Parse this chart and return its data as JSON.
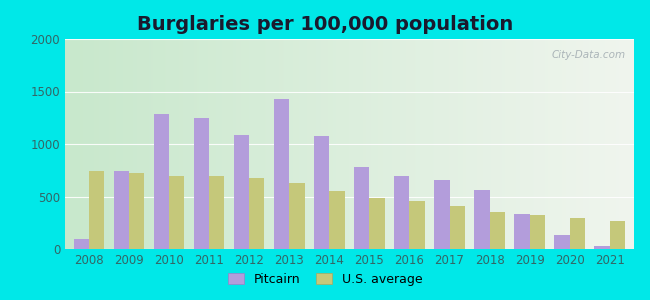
{
  "title": "Burglaries per 100,000 population",
  "years": [
    2008,
    2009,
    2010,
    2011,
    2012,
    2013,
    2014,
    2015,
    2016,
    2017,
    2018,
    2019,
    2020,
    2021
  ],
  "pitcairn": [
    100,
    740,
    1290,
    1250,
    1090,
    1430,
    1080,
    780,
    700,
    660,
    560,
    330,
    130,
    30
  ],
  "us_average": [
    740,
    720,
    700,
    700,
    680,
    630,
    550,
    490,
    460,
    410,
    350,
    320,
    300,
    270
  ],
  "pitcairn_color": "#b39ddb",
  "us_avg_color": "#c5c87a",
  "background_outer": "#00e8e8",
  "ylim": [
    0,
    2000
  ],
  "yticks": [
    0,
    500,
    1000,
    1500,
    2000
  ],
  "legend_pitcairn": "Pitcairn",
  "legend_us": "U.S. average",
  "bar_width": 0.38,
  "title_fontsize": 14,
  "tick_fontsize": 8.5,
  "tick_color": "#336666",
  "legend_fontsize": 9,
  "grad_top": "#e8f5f0",
  "grad_bottom": "#d0ecd8",
  "grad_right": "#f5f5f0"
}
